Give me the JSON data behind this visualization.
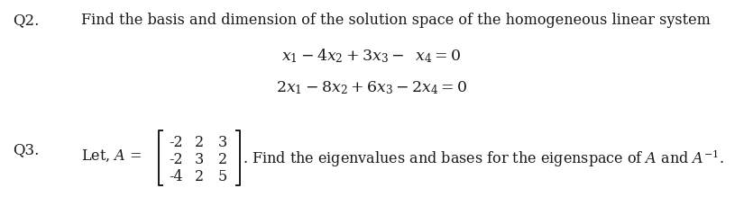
{
  "background_color": "#ffffff",
  "q2_label": "Q2.",
  "q2_text": "Find the basis and dimension of the solution space of the homogeneous linear system",
  "q3_label": "Q3.",
  "matrix_rows": [
    [
      "-2",
      "2",
      "3"
    ],
    [
      "-2",
      "3",
      "2"
    ],
    [
      "-4",
      "2",
      "5"
    ]
  ],
  "text_color": "#1a1a1a",
  "font_size_label": 12,
  "font_size_text": 11.5,
  "font_size_eq": 12.5
}
